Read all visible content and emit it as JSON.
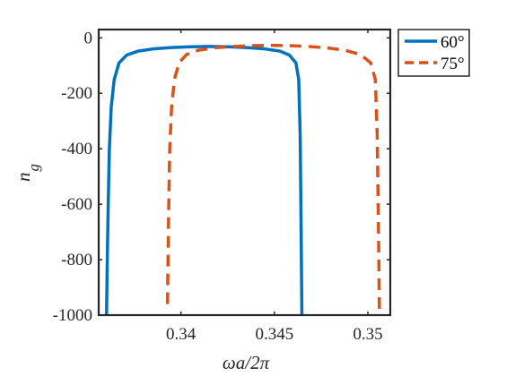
{
  "chart_data": {
    "type": "line",
    "title": "",
    "xlabel": "ωa/2π",
    "ylabel_base": "n",
    "ylabel_subscript": "g",
    "xlim": [
      0.3356,
      0.3512
    ],
    "ylim": [
      -1000,
      30
    ],
    "xticks": [
      0.34,
      0.345,
      0.35
    ],
    "xtick_labels": [
      "0.34",
      "0.345",
      "0.35"
    ],
    "yticks": [
      0,
      -200,
      -400,
      -600,
      -800,
      -1000
    ],
    "ytick_labels": [
      "0",
      "-200",
      "-400",
      "-600",
      "-800",
      "-1000"
    ],
    "grid": false,
    "legend_position": "outside-top-right",
    "series": [
      {
        "name": "60°",
        "color": "#0072BD",
        "style": "solid",
        "x": [
          0.33602,
          0.33606,
          0.33611,
          0.33617,
          0.33627,
          0.33643,
          0.33669,
          0.3371,
          0.3377,
          0.3385,
          0.3395,
          0.3405,
          0.3415,
          0.3425,
          0.3435,
          0.3445,
          0.3453,
          0.3458,
          0.34615,
          0.3463,
          0.34638,
          0.34643,
          0.34647
        ],
        "y": [
          -1000,
          -800,
          -600,
          -400,
          -250,
          -150,
          -90,
          -62,
          -48,
          -40,
          -35,
          -32,
          -31,
          -32,
          -35,
          -40,
          -48,
          -62,
          -90,
          -150,
          -350,
          -700,
          -1000
        ]
      },
      {
        "name": "75°",
        "color": "#D95319",
        "style": "dashed",
        "x": [
          0.33928,
          0.33931,
          0.33935,
          0.3394,
          0.3395,
          0.33965,
          0.3399,
          0.3403,
          0.3409,
          0.3418,
          0.3428,
          0.3438,
          0.3448,
          0.3458,
          0.3468,
          0.3478,
          0.3488,
          0.3496,
          0.35015,
          0.3504,
          0.3505,
          0.35057,
          0.35062
        ],
        "y": [
          -960,
          -800,
          -600,
          -400,
          -250,
          -150,
          -90,
          -60,
          -45,
          -36,
          -31,
          -28,
          -27,
          -28,
          -31,
          -36,
          -45,
          -60,
          -90,
          -150,
          -350,
          -700,
          -1000
        ]
      }
    ]
  }
}
